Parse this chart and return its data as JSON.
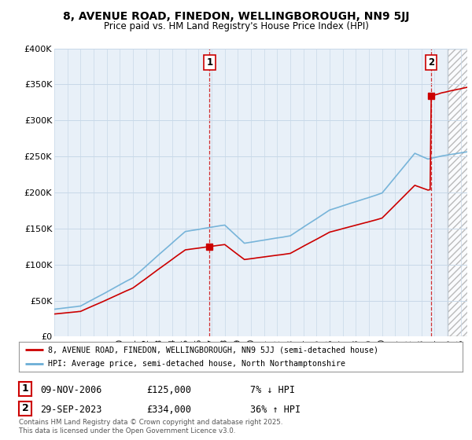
{
  "title": "8, AVENUE ROAD, FINEDON, WELLINGBOROUGH, NN9 5JJ",
  "subtitle": "Price paid vs. HM Land Registry's House Price Index (HPI)",
  "ylim": [
    0,
    400000
  ],
  "yticks": [
    0,
    50000,
    100000,
    150000,
    200000,
    250000,
    300000,
    350000,
    400000
  ],
  "ytick_labels": [
    "£0",
    "£50K",
    "£100K",
    "£150K",
    "£200K",
    "£250K",
    "£300K",
    "£350K",
    "£400K"
  ],
  "xlim_start": 1995.0,
  "xlim_end": 2026.5,
  "hpi_color": "#6baed6",
  "price_color": "#cc0000",
  "dashed_color": "#cc0000",
  "grid_color": "#c8d8e8",
  "background_color": "#e8f0f8",
  "hatch_color": "#cccccc",
  "legend_label_price": "8, AVENUE ROAD, FINEDON, WELLINGBOROUGH, NN9 5JJ (semi-detached house)",
  "legend_label_hpi": "HPI: Average price, semi-detached house, North Northamptonshire",
  "transaction1_date": "09-NOV-2006",
  "transaction1_price": "£125,000",
  "transaction1_hpi": "7% ↓ HPI",
  "transaction1_year": 2006.85,
  "transaction1_value": 125000,
  "transaction2_date": "29-SEP-2023",
  "transaction2_price": "£334,000",
  "transaction2_hpi": "36% ↑ HPI",
  "transaction2_year": 2023.75,
  "transaction2_value": 334000,
  "future_start": 2025.0,
  "footer": "Contains HM Land Registry data © Crown copyright and database right 2025.\nThis data is licensed under the Open Government Licence v3.0."
}
